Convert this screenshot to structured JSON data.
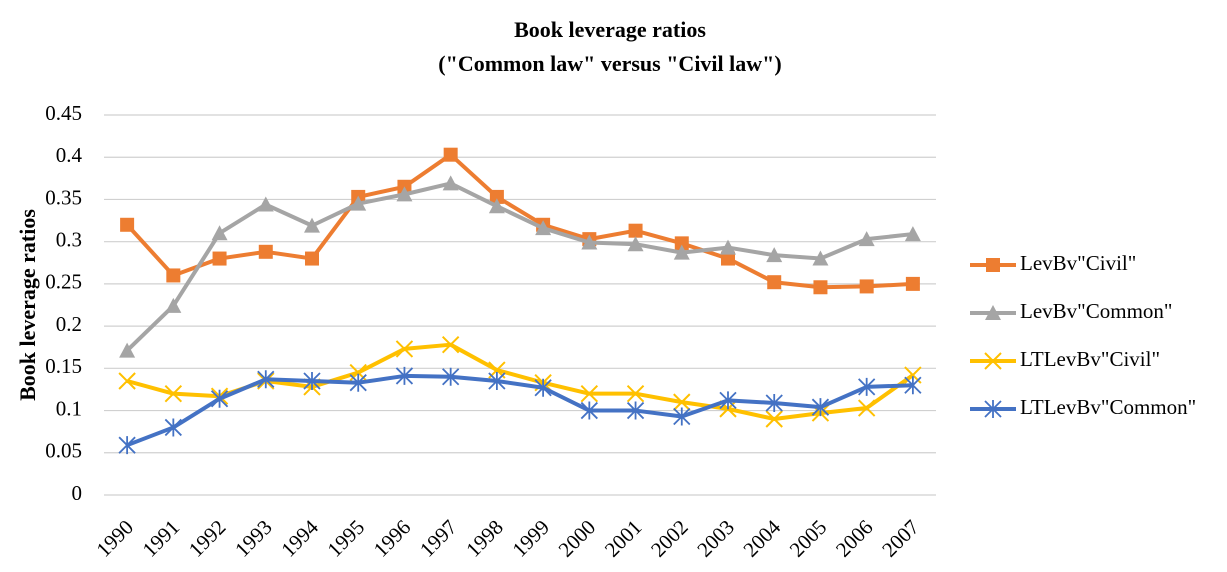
{
  "chart_data": {
    "type": "line",
    "title": "Book leverage ratios",
    "subtitle": "(\"Common law\" versus \"Civil law\")",
    "y_label": "Book leverage ratios",
    "categories": [
      "1990",
      "1991",
      "1992",
      "1993",
      "1994",
      "1995",
      "1996",
      "1997",
      "1998",
      "1999",
      "2000",
      "2001",
      "2002",
      "2003",
      "2004",
      "2005",
      "2006",
      "2007"
    ],
    "series": [
      {
        "name": "LevBv\"Civil\"",
        "color": "#ed7d31",
        "marker": "square",
        "values": [
          0.32,
          0.26,
          0.28,
          0.288,
          0.28,
          0.353,
          0.365,
          0.403,
          0.353,
          0.32,
          0.303,
          0.313,
          0.298,
          0.28,
          0.252,
          0.246,
          0.247,
          0.25
        ]
      },
      {
        "name": "LevBv\"Common\"",
        "color": "#a5a5a5",
        "marker": "triangle",
        "values": [
          0.171,
          0.224,
          0.31,
          0.344,
          0.319,
          0.345,
          0.356,
          0.369,
          0.342,
          0.316,
          0.299,
          0.297,
          0.287,
          0.293,
          0.284,
          0.28,
          0.303,
          0.309
        ]
      },
      {
        "name": "LTLevBv\"Civil\"",
        "color": "#ffc000",
        "marker": "x",
        "values": [
          0.135,
          0.12,
          0.117,
          0.135,
          0.128,
          0.145,
          0.173,
          0.178,
          0.148,
          0.133,
          0.12,
          0.12,
          0.11,
          0.102,
          0.09,
          0.097,
          0.103,
          0.142
        ]
      },
      {
        "name": "LTLevBv\"Common\"",
        "color": "#4472c4",
        "marker": "asterisk",
        "values": [
          0.059,
          0.08,
          0.114,
          0.137,
          0.135,
          0.133,
          0.141,
          0.14,
          0.135,
          0.127,
          0.1,
          0.1,
          0.093,
          0.112,
          0.109,
          0.104,
          0.128,
          0.13
        ]
      }
    ],
    "ylim": [
      0,
      0.45
    ],
    "yticks": [
      0,
      0.05,
      0.1,
      0.15,
      0.2,
      0.25,
      0.3,
      0.35,
      0.4,
      0.45
    ],
    "grid": true,
    "legend": "right"
  }
}
